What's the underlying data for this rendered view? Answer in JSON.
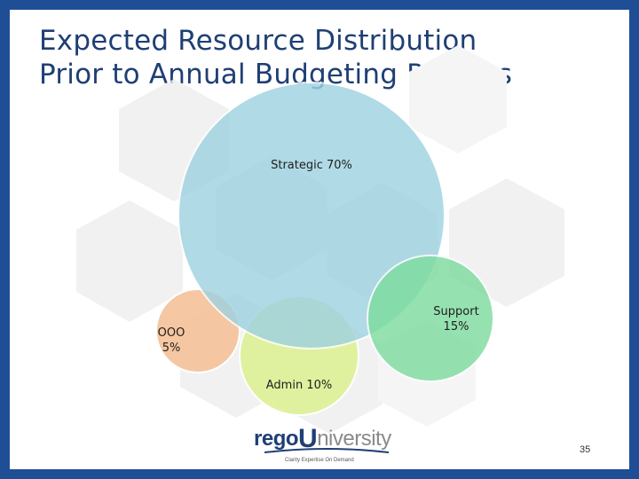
{
  "slide": {
    "title": "Expected Resource Distribution\nPrior to Annual Budgeting Process",
    "page_number": "35"
  },
  "diagram": {
    "nodes": [
      {
        "id": "strategic",
        "label": "Strategic 70%",
        "percent": 70,
        "color": "#9fd2e1"
      },
      {
        "id": "support",
        "label": "Support\n15%",
        "percent": 15,
        "color": "#7edc9f"
      },
      {
        "id": "admin",
        "label": "Admin 10%",
        "percent": 10,
        "color": "#dff29a"
      },
      {
        "id": "ooo",
        "label": "OOO\n5%",
        "percent": 5,
        "color": "#f5c59e"
      }
    ]
  },
  "logo": {
    "part1": "rego",
    "part2": "U",
    "part3": "niversity",
    "tagline": "Clarity Expertise On Demand"
  }
}
